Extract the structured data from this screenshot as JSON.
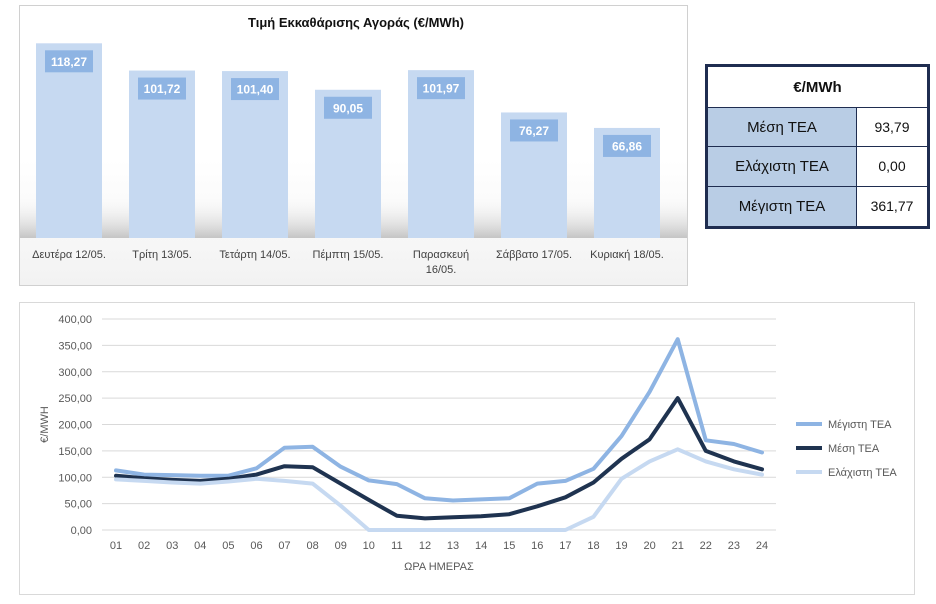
{
  "chart_data": [
    {
      "type": "bar",
      "title": "Τιμή Εκκαθάρισης Αγοράς (€/MWh)",
      "categories": [
        "Δευτέρα 12/05.",
        "Τρίτη 13/05.",
        "Τετάρτη 14/05.",
        "Πέμπτη 15/05.",
        "Παρασκευή 16/05.",
        "Σάββατο 17/05.",
        "Κυριακή 18/05."
      ],
      "values": [
        118.27,
        101.72,
        101.4,
        90.05,
        101.97,
        76.27,
        66.86
      ],
      "value_labels": [
        "118,27",
        "101,72",
        "101,40",
        "90,05",
        "101,97",
        "76,27",
        "66,86"
      ],
      "ylim": [
        0,
        130
      ],
      "grid": false,
      "legend": "none",
      "colors": {
        "bar": "#c6d9f1",
        "label_box": "#8eb4e3",
        "label_text": "#ffffff"
      }
    },
    {
      "type": "line",
      "xlabel": "ΩΡΑ ΗΜΕΡΑΣ",
      "ylabel": "€/MWH",
      "x": [
        "01",
        "02",
        "03",
        "04",
        "05",
        "06",
        "07",
        "08",
        "09",
        "10",
        "11",
        "12",
        "13",
        "14",
        "15",
        "16",
        "17",
        "18",
        "19",
        "20",
        "21",
        "22",
        "23",
        "24"
      ],
      "ylim": [
        0,
        400
      ],
      "yticks": [
        "0,00",
        "50,00",
        "100,00",
        "150,00",
        "200,00",
        "250,00",
        "300,00",
        "350,00",
        "400,00"
      ],
      "grid": true,
      "legend": "right",
      "series": [
        {
          "name": "Μέγιστη ΤΕΑ",
          "color": "#8eb4e3",
          "values": [
            113,
            105,
            104,
            103,
            103,
            117,
            156,
            158,
            120,
            94,
            87,
            60,
            56,
            58,
            60,
            88,
            93,
            116,
            178,
            262,
            361.77,
            170,
            163,
            147
          ]
        },
        {
          "name": "Μέση ΤΕΑ",
          "color": "#1f3350",
          "values": [
            103,
            98,
            95,
            93,
            97,
            105,
            121,
            119,
            88,
            57,
            27,
            22,
            24,
            26,
            30,
            45,
            62,
            90,
            135,
            172,
            250,
            150,
            130,
            115
          ]
        },
        {
          "name": "Ελάχιστη ΤΕΑ",
          "color": "#c6d9f1",
          "values": [
            96,
            93,
            90,
            88,
            92,
            97,
            93,
            88,
            46,
            0,
            0,
            0,
            0,
            0,
            0,
            0,
            0,
            25,
            97,
            130,
            153,
            130,
            115,
            105
          ]
        }
      ]
    }
  ],
  "stats_table": {
    "header": "€/MWh",
    "rows": [
      {
        "label": "Μέση ΤΕΑ",
        "value": "93,79"
      },
      {
        "label": "Ελάχιστη ΤΕΑ",
        "value": "0,00"
      },
      {
        "label": "Μέγιστη ΤΕΑ",
        "value": "361,77"
      }
    ]
  }
}
